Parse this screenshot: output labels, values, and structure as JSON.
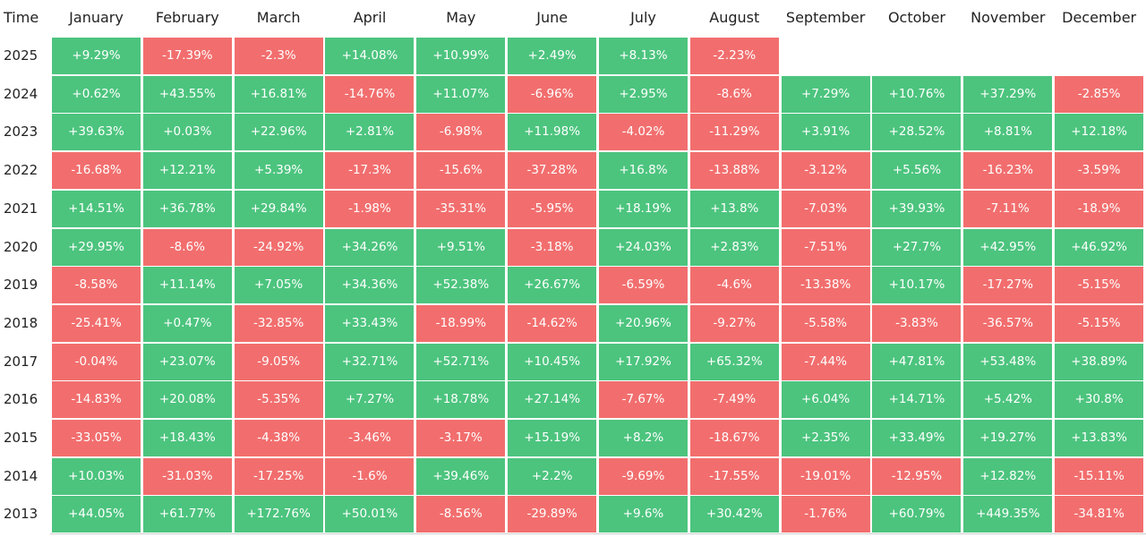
{
  "header": {
    "time_label": "Time"
  },
  "colors": {
    "positive": "#4cc47e",
    "negative": "#f26e6e"
  },
  "chart_data": {
    "type": "heatmap",
    "columns": [
      "January",
      "February",
      "March",
      "April",
      "May",
      "June",
      "July",
      "August",
      "September",
      "October",
      "November",
      "December"
    ],
    "rows": [
      {
        "year": "2025",
        "values": [
          "+9.29%",
          "-17.39%",
          "-2.3%",
          "+14.08%",
          "+10.99%",
          "+2.49%",
          "+8.13%",
          "-2.23%",
          null,
          null,
          null,
          null
        ]
      },
      {
        "year": "2024",
        "values": [
          "+0.62%",
          "+43.55%",
          "+16.81%",
          "-14.76%",
          "+11.07%",
          "-6.96%",
          "+2.95%",
          "-8.6%",
          "+7.29%",
          "+10.76%",
          "+37.29%",
          "-2.85%"
        ]
      },
      {
        "year": "2023",
        "values": [
          "+39.63%",
          "+0.03%",
          "+22.96%",
          "+2.81%",
          "-6.98%",
          "+11.98%",
          "-4.02%",
          "-11.29%",
          "+3.91%",
          "+28.52%",
          "+8.81%",
          "+12.18%"
        ]
      },
      {
        "year": "2022",
        "values": [
          "-16.68%",
          "+12.21%",
          "+5.39%",
          "-17.3%",
          "-15.6%",
          "-37.28%",
          "+16.8%",
          "-13.88%",
          "-3.12%",
          "+5.56%",
          "-16.23%",
          "-3.59%"
        ]
      },
      {
        "year": "2021",
        "values": [
          "+14.51%",
          "+36.78%",
          "+29.84%",
          "-1.98%",
          "-35.31%",
          "-5.95%",
          "+18.19%",
          "+13.8%",
          "-7.03%",
          "+39.93%",
          "-7.11%",
          "-18.9%"
        ]
      },
      {
        "year": "2020",
        "values": [
          "+29.95%",
          "-8.6%",
          "-24.92%",
          "+34.26%",
          "+9.51%",
          "-3.18%",
          "+24.03%",
          "+2.83%",
          "-7.51%",
          "+27.7%",
          "+42.95%",
          "+46.92%"
        ]
      },
      {
        "year": "2019",
        "values": [
          "-8.58%",
          "+11.14%",
          "+7.05%",
          "+34.36%",
          "+52.38%",
          "+26.67%",
          "-6.59%",
          "-4.6%",
          "-13.38%",
          "+10.17%",
          "-17.27%",
          "-5.15%"
        ]
      },
      {
        "year": "2018",
        "values": [
          "-25.41%",
          "+0.47%",
          "-32.85%",
          "+33.43%",
          "-18.99%",
          "-14.62%",
          "+20.96%",
          "-9.27%",
          "-5.58%",
          "-3.83%",
          "-36.57%",
          "-5.15%"
        ]
      },
      {
        "year": "2017",
        "values": [
          "-0.04%",
          "+23.07%",
          "-9.05%",
          "+32.71%",
          "+52.71%",
          "+10.45%",
          "+17.92%",
          "+65.32%",
          "-7.44%",
          "+47.81%",
          "+53.48%",
          "+38.89%"
        ]
      },
      {
        "year": "2016",
        "values": [
          "-14.83%",
          "+20.08%",
          "-5.35%",
          "+7.27%",
          "+18.78%",
          "+27.14%",
          "-7.67%",
          "-7.49%",
          "+6.04%",
          "+14.71%",
          "+5.42%",
          "+30.8%"
        ]
      },
      {
        "year": "2015",
        "values": [
          "-33.05%",
          "+18.43%",
          "-4.38%",
          "-3.46%",
          "-3.17%",
          "+15.19%",
          "+8.2%",
          "-18.67%",
          "+2.35%",
          "+33.49%",
          "+19.27%",
          "+13.83%"
        ]
      },
      {
        "year": "2014",
        "values": [
          "+10.03%",
          "-31.03%",
          "-17.25%",
          "-1.6%",
          "+39.46%",
          "+2.2%",
          "-9.69%",
          "-17.55%",
          "-19.01%",
          "-12.95%",
          "+12.82%",
          "-15.11%"
        ]
      },
      {
        "year": "2013",
        "values": [
          "+44.05%",
          "+61.77%",
          "+172.76%",
          "+50.01%",
          "-8.56%",
          "-29.89%",
          "+9.6%",
          "+30.42%",
          "-1.76%",
          "+60.79%",
          "+449.35%",
          "-34.81%"
        ]
      }
    ]
  }
}
